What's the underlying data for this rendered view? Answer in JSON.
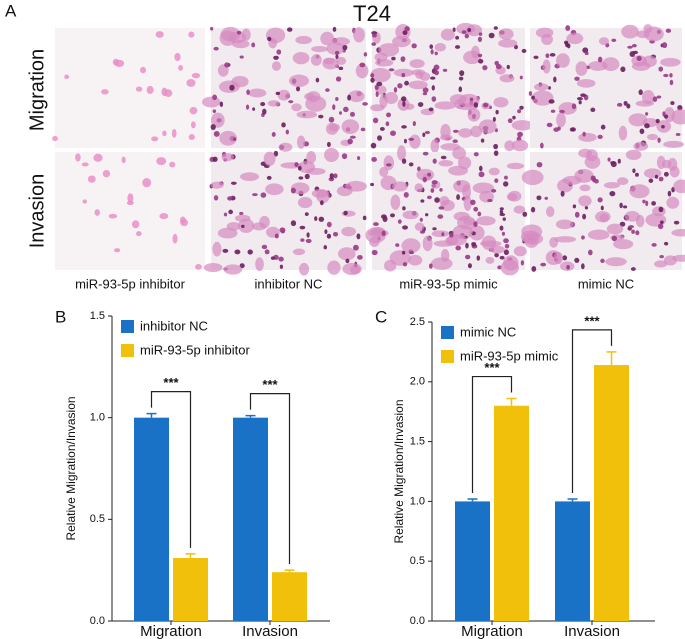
{
  "panel_a": {
    "label": "A",
    "title": "T24",
    "rows": [
      "Migration",
      "Invasion"
    ],
    "columns": [
      "miR-93-5p inhibitor",
      "inhibitor NC",
      "miR-93-5p mimic",
      "mimic NC"
    ]
  },
  "chart_data": [
    {
      "type": "bar",
      "panel_label": "B",
      "y_label": "Relative Migration/Invasion",
      "categories": [
        "Migration",
        "Invasion"
      ],
      "series": [
        {
          "name": "inhibitor NC",
          "color": "#1a72c6",
          "values": [
            1.0,
            1.0
          ],
          "errors": [
            0.02,
            0.01
          ]
        },
        {
          "name": "miR-93-5p inhibitor",
          "color": "#f0c00a",
          "values": [
            0.31,
            0.24
          ],
          "errors": [
            0.02,
            0.01
          ]
        }
      ],
      "annotations": [
        "***",
        "***"
      ],
      "ylim": [
        0,
        1.5
      ],
      "yticks": [
        {
          "value": 0,
          "label": "0.0"
        },
        0.5,
        {
          "value": 1,
          "label": "1.0"
        },
        1.5
      ],
      "legend": "top-left"
    },
    {
      "type": "bar",
      "panel_label": "C",
      "y_label": "Relative Migration/Invasion",
      "categories": [
        "Migration",
        "Invasion"
      ],
      "series": [
        {
          "name": "mimic NC",
          "color": "#1a72c6",
          "values": [
            1.0,
            1.0
          ],
          "errors": [
            0.02,
            0.02
          ]
        },
        {
          "name": "miR-93-5p mimic",
          "color": "#f0c00a",
          "values": [
            1.8,
            2.14
          ],
          "errors": [
            0.06,
            0.11
          ]
        }
      ],
      "annotations": [
        "***",
        "***"
      ],
      "ylim": [
        0,
        2.5
      ],
      "yticks": [
        {
          "value": 0,
          "label": "0.0"
        },
        0.5,
        {
          "value": 1,
          "label": "1.0"
        },
        1.5,
        {
          "value": 2,
          "label": "2.0"
        },
        2.5
      ],
      "legend": "top-left"
    }
  ]
}
